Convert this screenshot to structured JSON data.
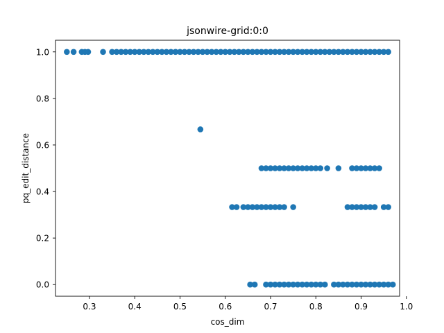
{
  "chart_data": {
    "type": "scatter",
    "title": "jsonwire-grid:0:0",
    "xlabel": "cos_dim",
    "ylabel": "pq_edit_distance",
    "xlim": [
      0.225,
      0.985
    ],
    "ylim": [
      -0.05,
      1.05
    ],
    "xticks": [
      0.3,
      0.4,
      0.5,
      0.6,
      0.7,
      0.8,
      0.9,
      1.0
    ],
    "xtick_labels": [
      "0.3",
      "0.4",
      "0.5",
      "0.6",
      "0.7",
      "0.8",
      "0.9",
      "1.0"
    ],
    "yticks": [
      0.0,
      0.2,
      0.4,
      0.6,
      0.8,
      1.0
    ],
    "ytick_labels": [
      "0.0",
      "0.2",
      "0.4",
      "0.6",
      "0.8",
      "1.0"
    ],
    "grid": false,
    "legend": "none",
    "marker_color": "#1f77b4",
    "series": [
      {
        "points": [
          {
            "x": 0.25,
            "y": 1.0
          },
          {
            "x": 0.265,
            "y": 1.0
          },
          {
            "x": 0.283,
            "y": 1.0
          },
          {
            "x": 0.29,
            "y": 1.0
          },
          {
            "x": 0.297,
            "y": 1.0
          },
          {
            "x": 0.33,
            "y": 1.0
          },
          {
            "x": 0.35,
            "y": 1.0
          },
          {
            "x": 0.36,
            "y": 1.0
          },
          {
            "x": 0.37,
            "y": 1.0
          },
          {
            "x": 0.38,
            "y": 1.0
          },
          {
            "x": 0.39,
            "y": 1.0
          },
          {
            "x": 0.4,
            "y": 1.0
          },
          {
            "x": 0.41,
            "y": 1.0
          },
          {
            "x": 0.42,
            "y": 1.0
          },
          {
            "x": 0.43,
            "y": 1.0
          },
          {
            "x": 0.44,
            "y": 1.0
          },
          {
            "x": 0.45,
            "y": 1.0
          },
          {
            "x": 0.46,
            "y": 1.0
          },
          {
            "x": 0.47,
            "y": 1.0
          },
          {
            "x": 0.48,
            "y": 1.0
          },
          {
            "x": 0.49,
            "y": 1.0
          },
          {
            "x": 0.5,
            "y": 1.0
          },
          {
            "x": 0.51,
            "y": 1.0
          },
          {
            "x": 0.52,
            "y": 1.0
          },
          {
            "x": 0.53,
            "y": 1.0
          },
          {
            "x": 0.54,
            "y": 1.0
          },
          {
            "x": 0.55,
            "y": 1.0
          },
          {
            "x": 0.56,
            "y": 1.0
          },
          {
            "x": 0.57,
            "y": 1.0
          },
          {
            "x": 0.58,
            "y": 1.0
          },
          {
            "x": 0.59,
            "y": 1.0
          },
          {
            "x": 0.6,
            "y": 1.0
          },
          {
            "x": 0.61,
            "y": 1.0
          },
          {
            "x": 0.62,
            "y": 1.0
          },
          {
            "x": 0.63,
            "y": 1.0
          },
          {
            "x": 0.64,
            "y": 1.0
          },
          {
            "x": 0.65,
            "y": 1.0
          },
          {
            "x": 0.66,
            "y": 1.0
          },
          {
            "x": 0.67,
            "y": 1.0
          },
          {
            "x": 0.68,
            "y": 1.0
          },
          {
            "x": 0.69,
            "y": 1.0
          },
          {
            "x": 0.7,
            "y": 1.0
          },
          {
            "x": 0.71,
            "y": 1.0
          },
          {
            "x": 0.72,
            "y": 1.0
          },
          {
            "x": 0.73,
            "y": 1.0
          },
          {
            "x": 0.74,
            "y": 1.0
          },
          {
            "x": 0.75,
            "y": 1.0
          },
          {
            "x": 0.76,
            "y": 1.0
          },
          {
            "x": 0.77,
            "y": 1.0
          },
          {
            "x": 0.78,
            "y": 1.0
          },
          {
            "x": 0.79,
            "y": 1.0
          },
          {
            "x": 0.8,
            "y": 1.0
          },
          {
            "x": 0.81,
            "y": 1.0
          },
          {
            "x": 0.82,
            "y": 1.0
          },
          {
            "x": 0.83,
            "y": 1.0
          },
          {
            "x": 0.84,
            "y": 1.0
          },
          {
            "x": 0.85,
            "y": 1.0
          },
          {
            "x": 0.86,
            "y": 1.0
          },
          {
            "x": 0.87,
            "y": 1.0
          },
          {
            "x": 0.88,
            "y": 1.0
          },
          {
            "x": 0.89,
            "y": 1.0
          },
          {
            "x": 0.9,
            "y": 1.0
          },
          {
            "x": 0.91,
            "y": 1.0
          },
          {
            "x": 0.92,
            "y": 1.0
          },
          {
            "x": 0.93,
            "y": 1.0
          },
          {
            "x": 0.94,
            "y": 1.0
          },
          {
            "x": 0.95,
            "y": 1.0
          },
          {
            "x": 0.96,
            "y": 1.0
          },
          {
            "x": 0.545,
            "y": 0.667
          },
          {
            "x": 0.68,
            "y": 0.5
          },
          {
            "x": 0.69,
            "y": 0.5
          },
          {
            "x": 0.7,
            "y": 0.5
          },
          {
            "x": 0.71,
            "y": 0.5
          },
          {
            "x": 0.72,
            "y": 0.5
          },
          {
            "x": 0.73,
            "y": 0.5
          },
          {
            "x": 0.74,
            "y": 0.5
          },
          {
            "x": 0.75,
            "y": 0.5
          },
          {
            "x": 0.76,
            "y": 0.5
          },
          {
            "x": 0.77,
            "y": 0.5
          },
          {
            "x": 0.78,
            "y": 0.5
          },
          {
            "x": 0.79,
            "y": 0.5
          },
          {
            "x": 0.8,
            "y": 0.5
          },
          {
            "x": 0.81,
            "y": 0.5
          },
          {
            "x": 0.825,
            "y": 0.5
          },
          {
            "x": 0.85,
            "y": 0.5
          },
          {
            "x": 0.88,
            "y": 0.5
          },
          {
            "x": 0.89,
            "y": 0.5
          },
          {
            "x": 0.9,
            "y": 0.5
          },
          {
            "x": 0.91,
            "y": 0.5
          },
          {
            "x": 0.92,
            "y": 0.5
          },
          {
            "x": 0.93,
            "y": 0.5
          },
          {
            "x": 0.94,
            "y": 0.5
          },
          {
            "x": 0.615,
            "y": 0.333
          },
          {
            "x": 0.625,
            "y": 0.333
          },
          {
            "x": 0.64,
            "y": 0.333
          },
          {
            "x": 0.65,
            "y": 0.333
          },
          {
            "x": 0.66,
            "y": 0.333
          },
          {
            "x": 0.67,
            "y": 0.333
          },
          {
            "x": 0.68,
            "y": 0.333
          },
          {
            "x": 0.69,
            "y": 0.333
          },
          {
            "x": 0.7,
            "y": 0.333
          },
          {
            "x": 0.71,
            "y": 0.333
          },
          {
            "x": 0.72,
            "y": 0.333
          },
          {
            "x": 0.73,
            "y": 0.333
          },
          {
            "x": 0.75,
            "y": 0.333
          },
          {
            "x": 0.87,
            "y": 0.333
          },
          {
            "x": 0.88,
            "y": 0.333
          },
          {
            "x": 0.89,
            "y": 0.333
          },
          {
            "x": 0.9,
            "y": 0.333
          },
          {
            "x": 0.91,
            "y": 0.333
          },
          {
            "x": 0.92,
            "y": 0.333
          },
          {
            "x": 0.93,
            "y": 0.333
          },
          {
            "x": 0.95,
            "y": 0.333
          },
          {
            "x": 0.96,
            "y": 0.333
          },
          {
            "x": 0.655,
            "y": 0.0
          },
          {
            "x": 0.665,
            "y": 0.0
          },
          {
            "x": 0.69,
            "y": 0.0
          },
          {
            "x": 0.7,
            "y": 0.0
          },
          {
            "x": 0.71,
            "y": 0.0
          },
          {
            "x": 0.72,
            "y": 0.0
          },
          {
            "x": 0.73,
            "y": 0.0
          },
          {
            "x": 0.74,
            "y": 0.0
          },
          {
            "x": 0.75,
            "y": 0.0
          },
          {
            "x": 0.76,
            "y": 0.0
          },
          {
            "x": 0.77,
            "y": 0.0
          },
          {
            "x": 0.78,
            "y": 0.0
          },
          {
            "x": 0.79,
            "y": 0.0
          },
          {
            "x": 0.8,
            "y": 0.0
          },
          {
            "x": 0.81,
            "y": 0.0
          },
          {
            "x": 0.82,
            "y": 0.0
          },
          {
            "x": 0.84,
            "y": 0.0
          },
          {
            "x": 0.85,
            "y": 0.0
          },
          {
            "x": 0.86,
            "y": 0.0
          },
          {
            "x": 0.87,
            "y": 0.0
          },
          {
            "x": 0.88,
            "y": 0.0
          },
          {
            "x": 0.89,
            "y": 0.0
          },
          {
            "x": 0.9,
            "y": 0.0
          },
          {
            "x": 0.91,
            "y": 0.0
          },
          {
            "x": 0.92,
            "y": 0.0
          },
          {
            "x": 0.93,
            "y": 0.0
          },
          {
            "x": 0.94,
            "y": 0.0
          },
          {
            "x": 0.95,
            "y": 0.0
          },
          {
            "x": 0.96,
            "y": 0.0
          },
          {
            "x": 0.97,
            "y": 0.0
          }
        ]
      }
    ]
  }
}
